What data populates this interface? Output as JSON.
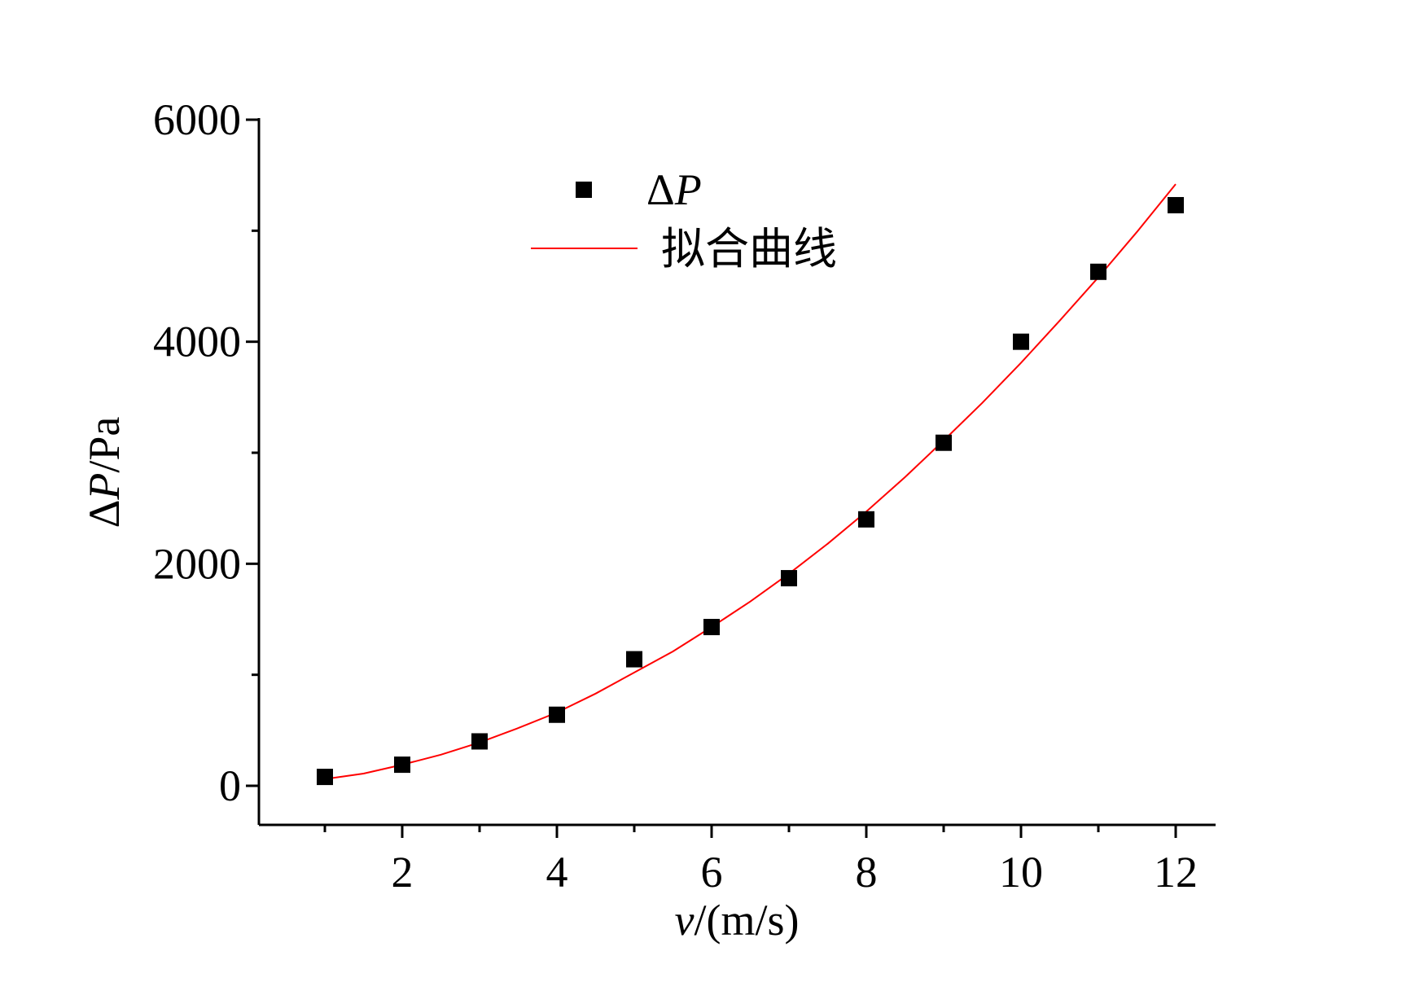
{
  "chart_data": {
    "type": "scatter",
    "xlabel_var": "v",
    "xlabel_unit": "/(m/s)",
    "ylabel_var": "P",
    "ylabel_delta": "Δ",
    "ylabel_unit": "/Pa",
    "xlim": [
      0,
      13.2
    ],
    "ylim": [
      -180,
      6000
    ],
    "x_ticks_major": [
      2,
      4,
      6,
      8,
      10,
      12
    ],
    "x_ticks_minor": [
      1,
      3,
      5,
      7,
      9,
      11
    ],
    "x_tick_labels": [
      "2",
      "4",
      "6",
      "8",
      "10",
      "12"
    ],
    "y_ticks_major": [
      0,
      2000,
      4000,
      6000
    ],
    "y_ticks_minor": [
      1000,
      3000,
      5000
    ],
    "y_tick_labels": [
      "0",
      "2000",
      "4000",
      "6000"
    ],
    "grid": false,
    "legend_position": "top-center",
    "series": [
      {
        "name_delta": "Δ",
        "name_var": "P",
        "type": "scatter",
        "marker": "square",
        "color": "#000000",
        "x": [
          1,
          2,
          3,
          4,
          5,
          6,
          7,
          8,
          9,
          10,
          11,
          12
        ],
        "y": [
          80,
          190,
          400,
          640,
          1140,
          1430,
          1870,
          2400,
          3090,
          4000,
          4630,
          5230
        ]
      },
      {
        "name": "拟合曲线",
        "type": "line",
        "color": "#ff0000",
        "x": [
          1,
          1.5,
          2,
          2.5,
          3,
          3.5,
          4,
          4.5,
          5,
          5.5,
          6,
          6.5,
          7,
          7.5,
          8,
          8.5,
          9,
          9.5,
          10,
          10.5,
          11,
          11.5,
          12
        ],
        "y": [
          60,
          110,
          190,
          280,
          390,
          520,
          660,
          830,
          1020,
          1210,
          1430,
          1660,
          1910,
          2180,
          2470,
          2780,
          3110,
          3450,
          3810,
          4190,
          4580,
          4990,
          5420
        ]
      }
    ]
  }
}
